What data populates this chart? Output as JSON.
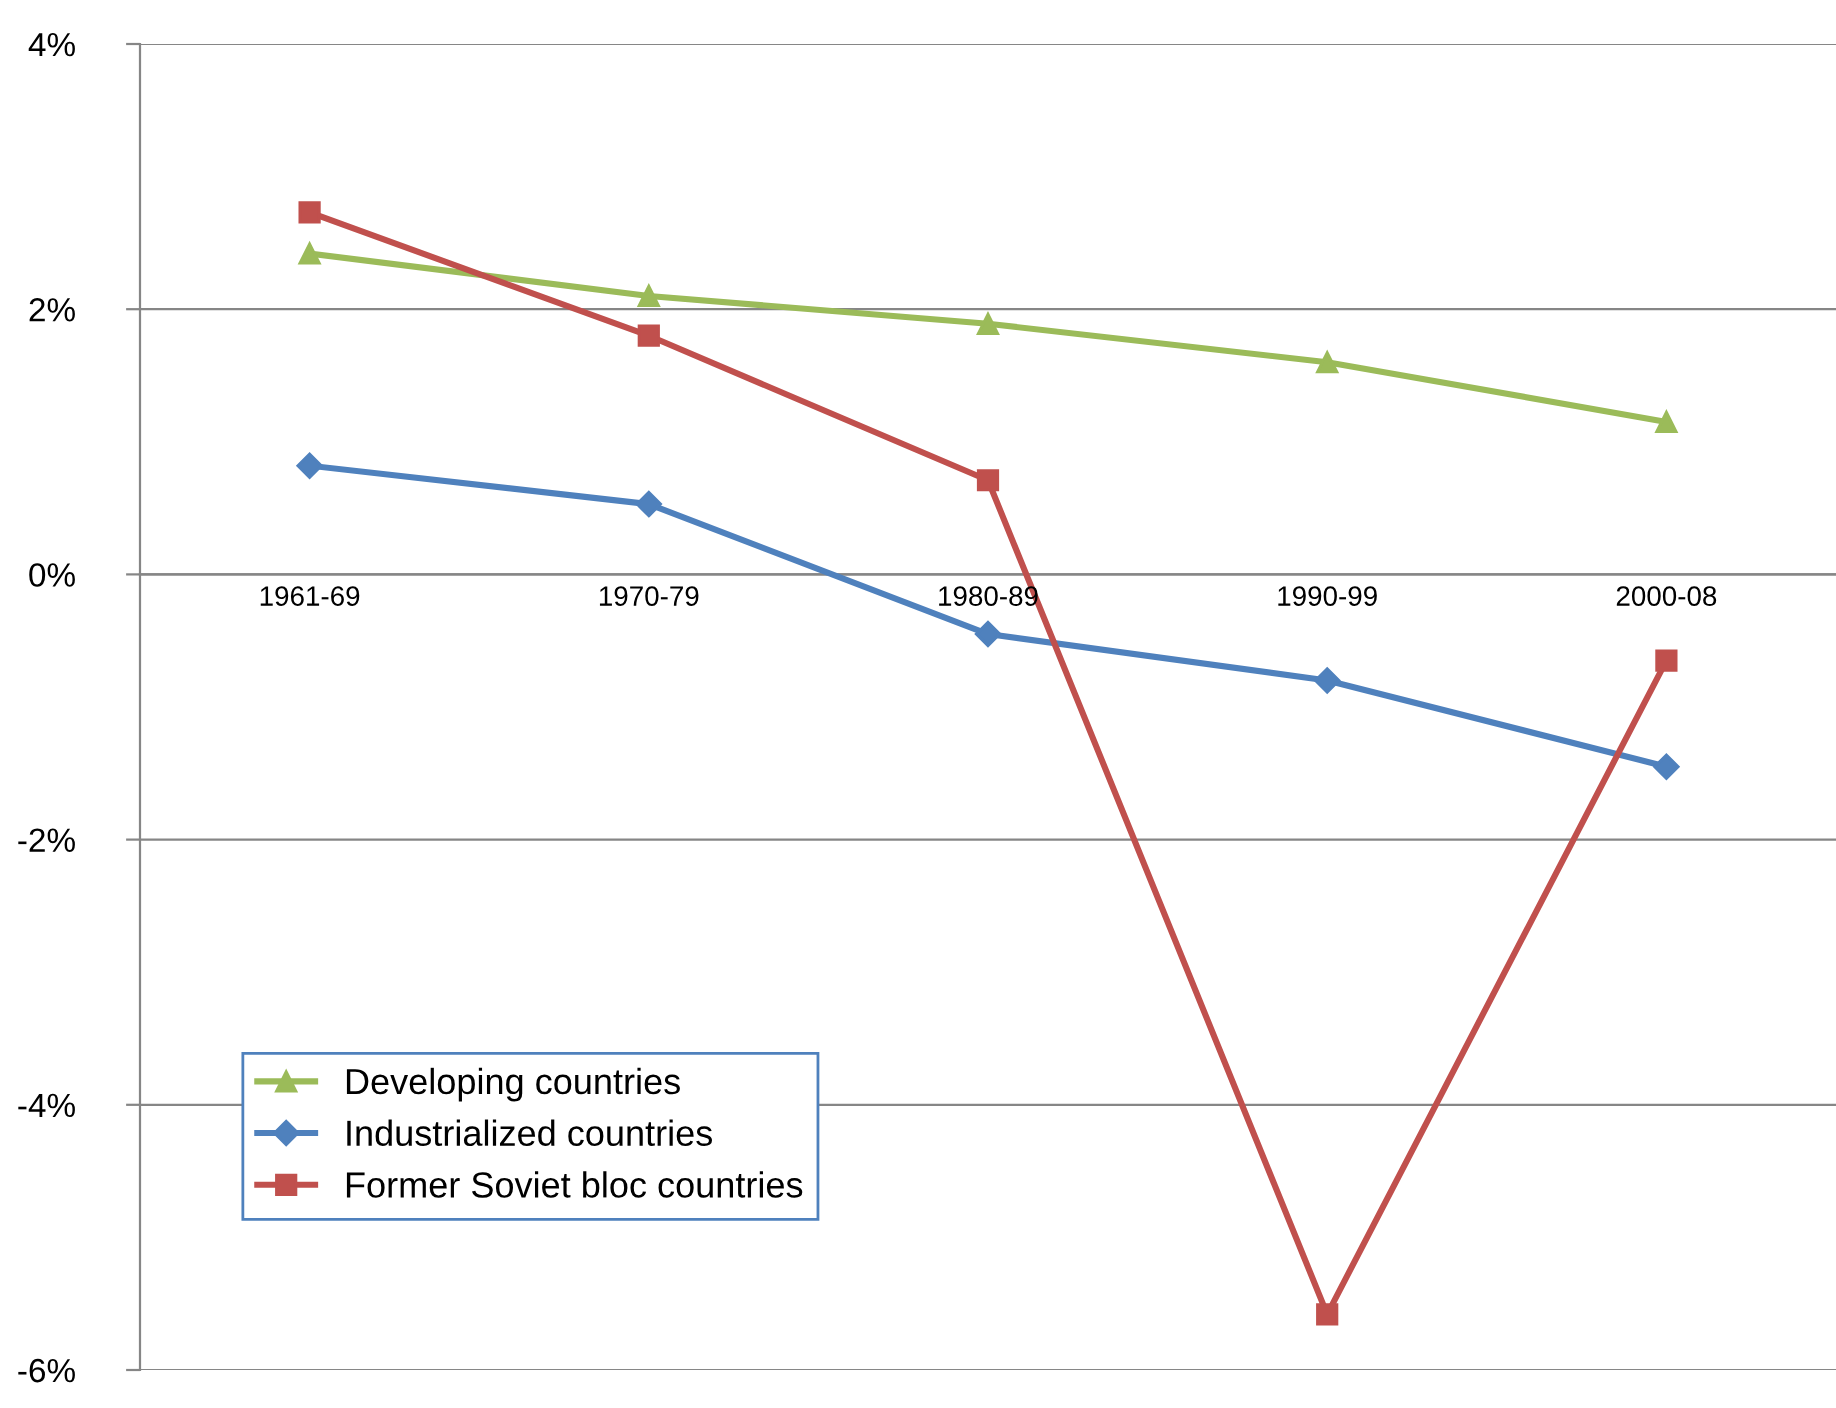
{
  "chart_data": {
    "type": "line",
    "categories": [
      "1961-69",
      "1970-79",
      "1980-89",
      "1990-99",
      "2000-08"
    ],
    "series": [
      {
        "name": "Developing countries",
        "color": "#9bbb59",
        "marker": "triangle",
        "values": [
          2.42,
          2.1,
          1.89,
          1.6,
          1.15
        ]
      },
      {
        "name": "Industrialized countries",
        "color": "#4f81bd",
        "marker": "diamond",
        "values": [
          0.82,
          0.53,
          -0.45,
          -0.8,
          -1.45
        ]
      },
      {
        "name": "Former Soviet bloc countries",
        "color": "#c0504d",
        "marker": "square",
        "values": [
          2.73,
          1.8,
          0.71,
          -5.58,
          -0.65
        ]
      }
    ],
    "ylim": [
      -6,
      4
    ],
    "yticks": [
      {
        "value": -6,
        "label": "-6%"
      },
      {
        "value": -4,
        "label": "-4%"
      },
      {
        "value": -2,
        "label": "-2%"
      },
      {
        "value": 0,
        "label": "0%"
      },
      {
        "value": 2,
        "label": "2%"
      },
      {
        "value": 4,
        "label": "4%"
      }
    ],
    "grid": "y",
    "legend": "bottom left",
    "line_style": "solid"
  }
}
